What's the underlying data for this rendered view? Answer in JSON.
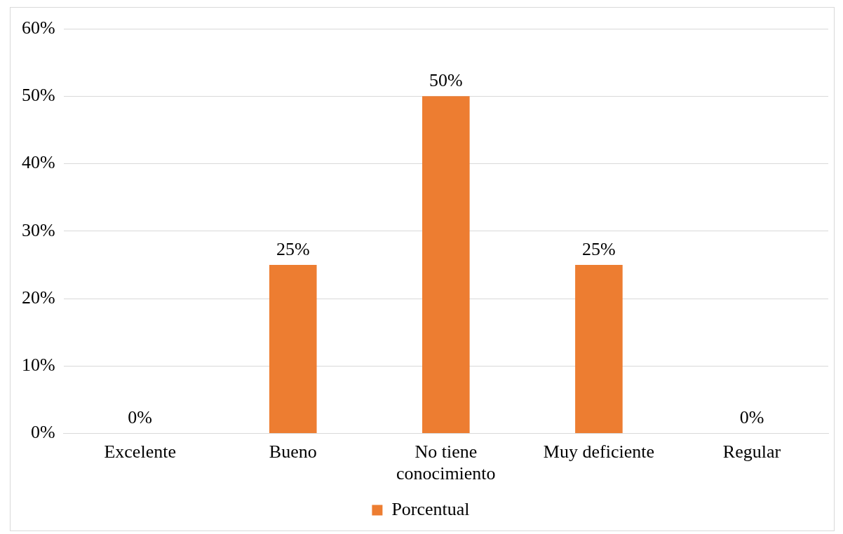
{
  "chart_data": {
    "type": "bar",
    "categories": [
      "Excelente",
      "Bueno",
      "No tiene conocimiento",
      "Muy deficiente",
      "Regular"
    ],
    "series": [
      {
        "name": "Porcentual",
        "color": "#ed7d31",
        "values": [
          0,
          25,
          50,
          25,
          0
        ],
        "value_labels": [
          "0%",
          "25%",
          "50%",
          "25%",
          "0%"
        ]
      }
    ],
    "ylim": [
      0,
      60
    ],
    "yticks": [
      {
        "value": 0,
        "label": "0%"
      },
      {
        "value": 10,
        "label": "10%"
      },
      {
        "value": 20,
        "label": "20%"
      },
      {
        "value": 30,
        "label": "30%"
      },
      {
        "value": 40,
        "label": "40%"
      },
      {
        "value": 50,
        "label": "50%"
      },
      {
        "value": 60,
        "label": "60%"
      }
    ],
    "grid": "y",
    "legend": "bottom"
  }
}
